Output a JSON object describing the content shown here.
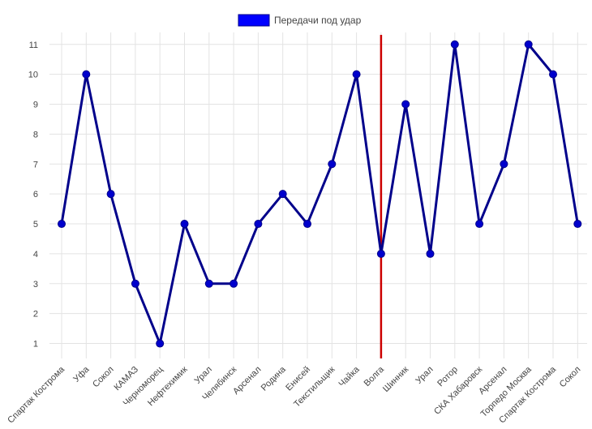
{
  "chart_data": {
    "type": "line",
    "legend": {
      "position": "top-center",
      "entries": [
        {
          "label": "Передачи под удар",
          "color": "#0000ff"
        }
      ]
    },
    "categories": [
      "Спартак Кострома",
      "Уфа",
      "Сокол",
      "КАМАЗ",
      "Черноморец",
      "Нефтехимик",
      "Урал",
      "Челябинск",
      "Арсенал",
      "Родина",
      "Енисей",
      "Текстильщик",
      "Чайка",
      "Волга",
      "Шинник",
      "Урал",
      "Ротор",
      "СКА Хабаровск",
      "Арсенал",
      "Торпедо Москва",
      "Спартак Кострома",
      "Сокол"
    ],
    "series": [
      {
        "name": "Передачи под удар",
        "values": [
          5,
          10,
          6,
          3,
          1,
          5,
          3,
          3,
          5,
          6,
          5,
          7,
          10,
          4,
          9,
          4,
          11,
          5,
          7,
          11,
          10,
          5
        ],
        "line_color": "#00008b",
        "marker_color": "#0000cd"
      }
    ],
    "marker_line": {
      "category_index": 13,
      "color": "#cc0000"
    },
    "ylim": [
      0.5,
      11.4
    ],
    "yticks": [
      1,
      2,
      3,
      4,
      5,
      6,
      7,
      8,
      9,
      10,
      11
    ],
    "grid": true
  }
}
